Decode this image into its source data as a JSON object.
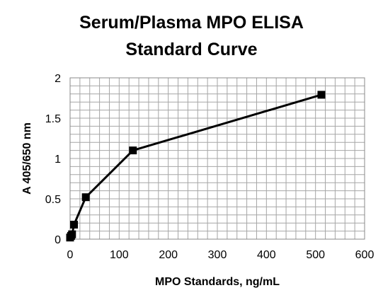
{
  "chart_data": {
    "type": "line",
    "title_lines": [
      "Serum/Plasma MPO ELISA",
      "Standard Curve"
    ],
    "xlabel": "MPO Standards, ng/mL",
    "ylabel": "A  405/650 nm",
    "xlim": [
      0,
      600
    ],
    "ylim": [
      0,
      2
    ],
    "x_ticks": [
      0,
      100,
      200,
      300,
      400,
      500,
      600
    ],
    "y_ticks": [
      0,
      0.5,
      1,
      1.5,
      2
    ],
    "y_tick_labels": [
      "0",
      "0.5",
      "1",
      "1.5",
      "2"
    ],
    "grid": true,
    "minor_grid_x_step": 20,
    "minor_grid_y_step": 0.1,
    "marker": "square",
    "line_color": "#000000",
    "series": [
      {
        "x": [
          0,
          2,
          4,
          8,
          32,
          128,
          512
        ],
        "y": [
          0.02,
          0.04,
          0.06,
          0.18,
          0.52,
          1.1,
          1.79
        ]
      }
    ]
  }
}
